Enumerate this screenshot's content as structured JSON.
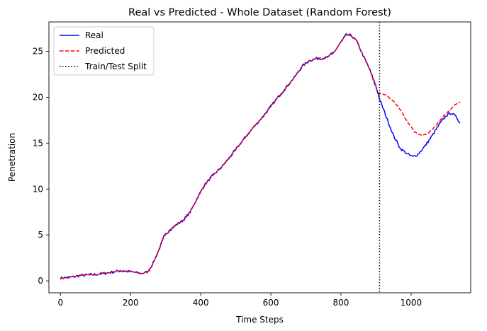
{
  "chart_data": {
    "type": "line",
    "title": "Real vs Predicted - Whole Dataset (Random Forest)",
    "xlabel": "Time Steps",
    "ylabel": "Penetration",
    "xlim": [
      -33,
      1170
    ],
    "ylim": [
      -1.3,
      28.2
    ],
    "xticks": [
      0,
      200,
      400,
      600,
      800,
      1000
    ],
    "yticks": [
      0,
      5,
      10,
      15,
      20,
      25
    ],
    "grid": false,
    "legend_position": "top-left",
    "split_x": 910,
    "split_label": "Train/Test Split",
    "series": [
      {
        "name": "Real",
        "color": "#0000ff",
        "dash": "solid",
        "points": [
          [
            0,
            0.3
          ],
          [
            30,
            0.4
          ],
          [
            60,
            0.6
          ],
          [
            100,
            0.7
          ],
          [
            140,
            0.9
          ],
          [
            170,
            1.1
          ],
          [
            200,
            1.0
          ],
          [
            230,
            0.8
          ],
          [
            250,
            1.0
          ],
          [
            265,
            2.0
          ],
          [
            280,
            3.3
          ],
          [
            295,
            4.8
          ],
          [
            310,
            5.5
          ],
          [
            330,
            6.1
          ],
          [
            350,
            6.6
          ],
          [
            370,
            7.5
          ],
          [
            390,
            9.0
          ],
          [
            410,
            10.4
          ],
          [
            430,
            11.3
          ],
          [
            460,
            12.4
          ],
          [
            490,
            13.8
          ],
          [
            520,
            15.3
          ],
          [
            550,
            16.7
          ],
          [
            580,
            18.0
          ],
          [
            610,
            19.5
          ],
          [
            640,
            20.9
          ],
          [
            670,
            22.3
          ],
          [
            690,
            23.4
          ],
          [
            710,
            24.0
          ],
          [
            730,
            24.2
          ],
          [
            760,
            24.3
          ],
          [
            780,
            24.9
          ],
          [
            800,
            26.0
          ],
          [
            815,
            26.8
          ],
          [
            830,
            26.7
          ],
          [
            845,
            26.1
          ],
          [
            860,
            24.8
          ],
          [
            880,
            23.2
          ],
          [
            900,
            21.2
          ],
          [
            910,
            19.8
          ],
          [
            930,
            17.8
          ],
          [
            950,
            15.8
          ],
          [
            970,
            14.4
          ],
          [
            990,
            13.8
          ],
          [
            1005,
            13.5
          ],
          [
            1020,
            13.8
          ],
          [
            1040,
            14.7
          ],
          [
            1060,
            15.8
          ],
          [
            1080,
            17.0
          ],
          [
            1100,
            18.0
          ],
          [
            1115,
            18.3
          ],
          [
            1130,
            17.8
          ],
          [
            1140,
            17.2
          ]
        ]
      },
      {
        "name": "Predicted",
        "color": "#ff0000",
        "dash": "dashed",
        "points": [
          [
            0,
            0.3
          ],
          [
            30,
            0.4
          ],
          [
            60,
            0.6
          ],
          [
            100,
            0.7
          ],
          [
            140,
            0.9
          ],
          [
            170,
            1.1
          ],
          [
            200,
            1.0
          ],
          [
            230,
            0.8
          ],
          [
            250,
            1.0
          ],
          [
            265,
            2.0
          ],
          [
            280,
            3.3
          ],
          [
            295,
            4.8
          ],
          [
            310,
            5.5
          ],
          [
            330,
            6.1
          ],
          [
            350,
            6.6
          ],
          [
            370,
            7.5
          ],
          [
            390,
            9.0
          ],
          [
            410,
            10.4
          ],
          [
            430,
            11.3
          ],
          [
            460,
            12.4
          ],
          [
            490,
            13.8
          ],
          [
            520,
            15.3
          ],
          [
            550,
            16.7
          ],
          [
            580,
            18.0
          ],
          [
            610,
            19.5
          ],
          [
            640,
            20.9
          ],
          [
            670,
            22.3
          ],
          [
            690,
            23.4
          ],
          [
            710,
            24.0
          ],
          [
            730,
            24.2
          ],
          [
            760,
            24.3
          ],
          [
            780,
            24.9
          ],
          [
            800,
            26.0
          ],
          [
            815,
            26.8
          ],
          [
            830,
            26.7
          ],
          [
            845,
            26.1
          ],
          [
            860,
            24.8
          ],
          [
            880,
            23.2
          ],
          [
            900,
            21.0
          ],
          [
            910,
            20.4
          ],
          [
            930,
            20.2
          ],
          [
            950,
            19.6
          ],
          [
            970,
            18.6
          ],
          [
            990,
            17.3
          ],
          [
            1010,
            16.2
          ],
          [
            1030,
            15.8
          ],
          [
            1050,
            16.1
          ],
          [
            1070,
            16.9
          ],
          [
            1090,
            17.8
          ],
          [
            1110,
            18.6
          ],
          [
            1125,
            19.2
          ],
          [
            1140,
            19.5
          ]
        ]
      }
    ]
  }
}
